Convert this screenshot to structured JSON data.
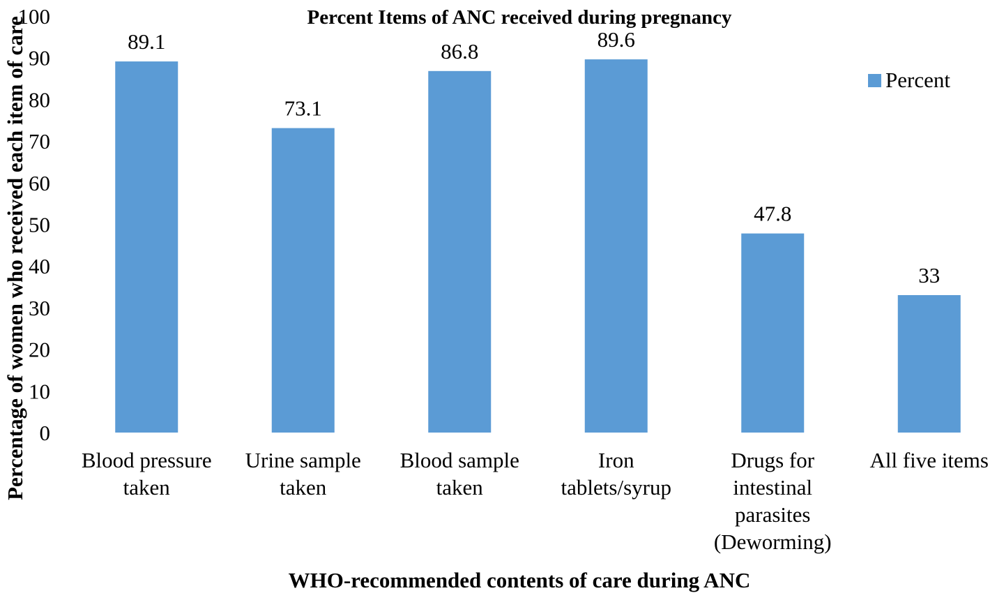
{
  "chart_data": {
    "type": "bar",
    "title": "Percent Items of ANC received during pregnancy",
    "xlabel": "WHO-recommended contents of care during ANC",
    "ylabel": "Percentage of women who received each item of care",
    "categories": [
      [
        "Blood pressure",
        "taken"
      ],
      [
        "Urine sample",
        "taken"
      ],
      [
        "Blood sample",
        "taken"
      ],
      [
        "Iron",
        "tablets/syrup"
      ],
      [
        "Drugs for",
        "intestinal",
        "parasites",
        "(Deworming)"
      ],
      [
        "All five items"
      ]
    ],
    "series": [
      {
        "name": "Percent",
        "values": [
          89.1,
          73.1,
          86.8,
          89.6,
          47.8,
          33
        ]
      }
    ],
    "data_labels": [
      "89.1",
      "73.1",
      "86.8",
      "89.6",
      "47.8",
      "33"
    ],
    "ylim": [
      0,
      100
    ],
    "yticks": [
      0,
      10,
      20,
      30,
      40,
      50,
      60,
      70,
      80,
      90,
      100
    ],
    "grid": false,
    "legend_position": "top-right",
    "colors": {
      "bar": "#5b9bd5"
    }
  }
}
